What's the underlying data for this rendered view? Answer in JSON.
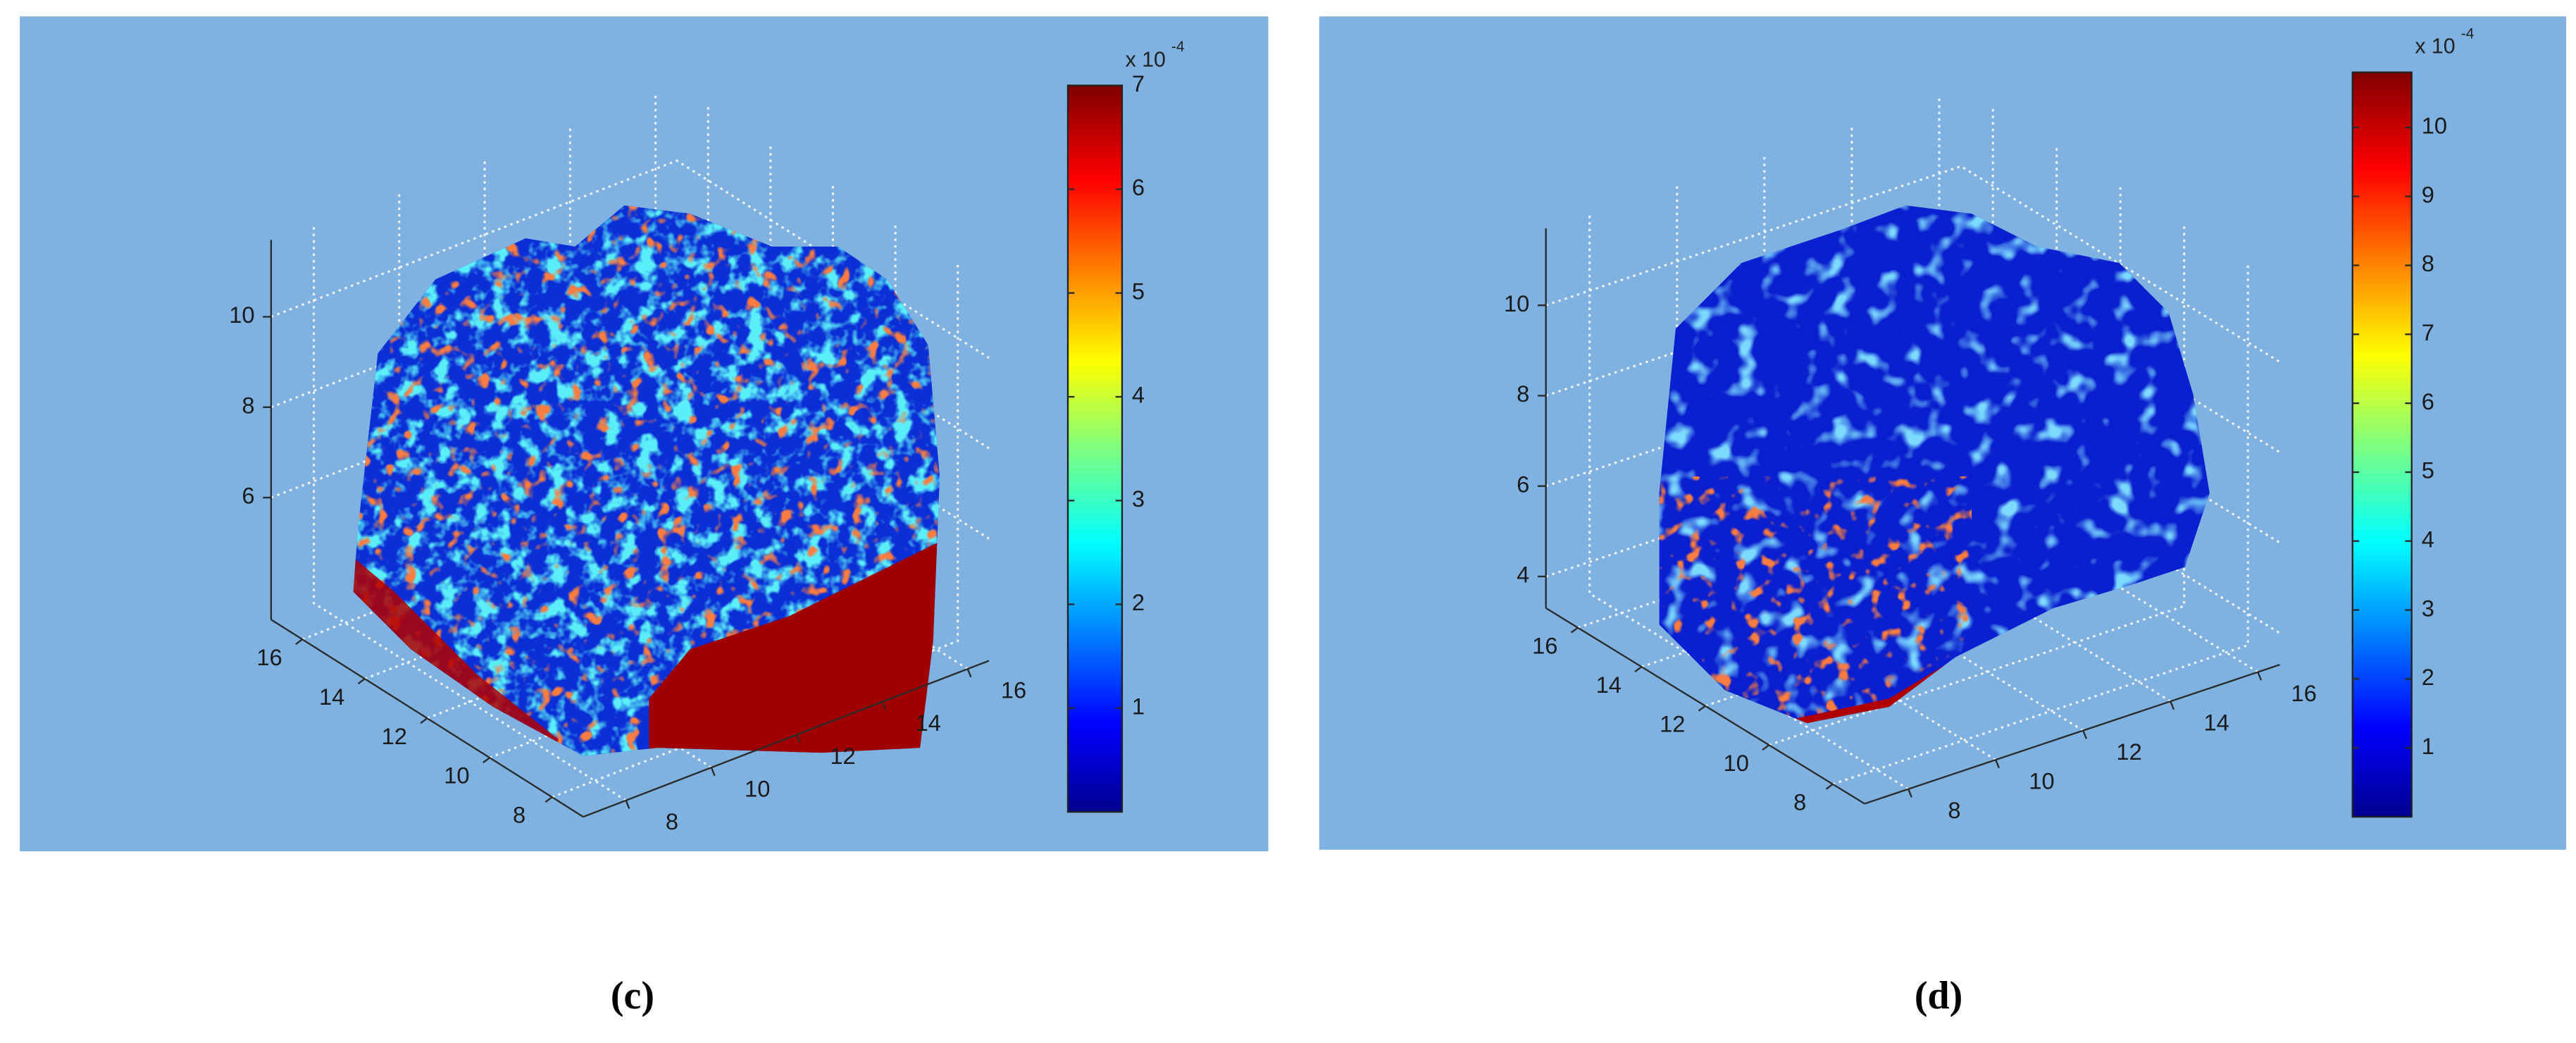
{
  "chart_data": [
    {
      "type": "surface3d",
      "caption": "(c)",
      "xlim": [
        7,
        16.5
      ],
      "xticks": [
        8,
        10,
        12,
        14,
        16
      ],
      "ylim": [
        7,
        17
      ],
      "yticks": [
        8,
        10,
        12,
        14,
        16
      ],
      "zlim": [
        3.3,
        11.7
      ],
      "zticks": [
        6,
        8,
        10
      ],
      "grid": true,
      "colorbar": {
        "lim": [
          0,
          7
        ],
        "ticks": [
          1,
          2,
          3,
          4,
          5,
          6,
          7
        ],
        "multiplier": "x 10",
        "exponent": "-4"
      }
    },
    {
      "type": "surface3d",
      "caption": "(d)",
      "xlim": [
        7,
        16.5
      ],
      "xticks": [
        8,
        10,
        12,
        14,
        16
      ],
      "ylim": [
        7,
        17
      ],
      "yticks": [
        8,
        10,
        12,
        14,
        16
      ],
      "zlim": [
        3.3,
        11.7
      ],
      "zticks": [
        4,
        6,
        8,
        10
      ],
      "grid": true,
      "colorbar": {
        "lim": [
          0,
          10.8
        ],
        "ticks": [
          1,
          2,
          3,
          4,
          5,
          6,
          7,
          8,
          9,
          10
        ],
        "multiplier": "x 10",
        "exponent": "-4"
      }
    }
  ]
}
